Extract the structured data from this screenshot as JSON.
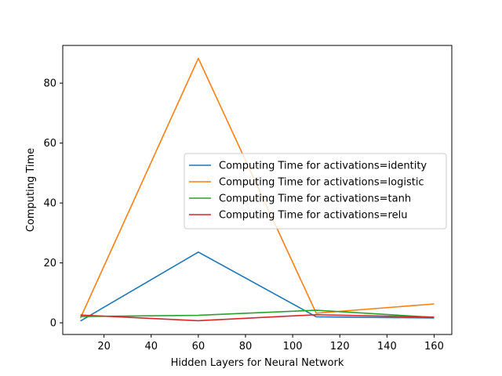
{
  "chart_data": {
    "type": "line",
    "title": "",
    "xlabel": "Hidden Layers for Neural Network",
    "ylabel": "Computing Time",
    "x": [
      10,
      60,
      110,
      160
    ],
    "xlim": [
      2.5,
      167.5
    ],
    "ylim": [
      -3.9,
      92.6
    ],
    "xticks": [
      20,
      40,
      60,
      80,
      100,
      120,
      140,
      160
    ],
    "yticks": [
      0,
      20,
      40,
      60,
      80
    ],
    "grid": false,
    "legend_position": "center-right",
    "series": [
      {
        "name": "Computing Time for activations=identity",
        "color": "#1f77b4",
        "values": [
          0.6,
          23.6,
          2.0,
          1.6
        ]
      },
      {
        "name": "Computing Time for activations=logistic",
        "color": "#ff7f0e",
        "values": [
          1.6,
          88.3,
          3.2,
          6.3
        ]
      },
      {
        "name": "Computing Time for activations=tanh",
        "color": "#2ca02c",
        "values": [
          2.1,
          2.5,
          4.2,
          1.8
        ]
      },
      {
        "name": "Computing Time for activations=relu",
        "color": "#d62728",
        "values": [
          2.6,
          0.7,
          2.7,
          1.9
        ]
      }
    ]
  }
}
